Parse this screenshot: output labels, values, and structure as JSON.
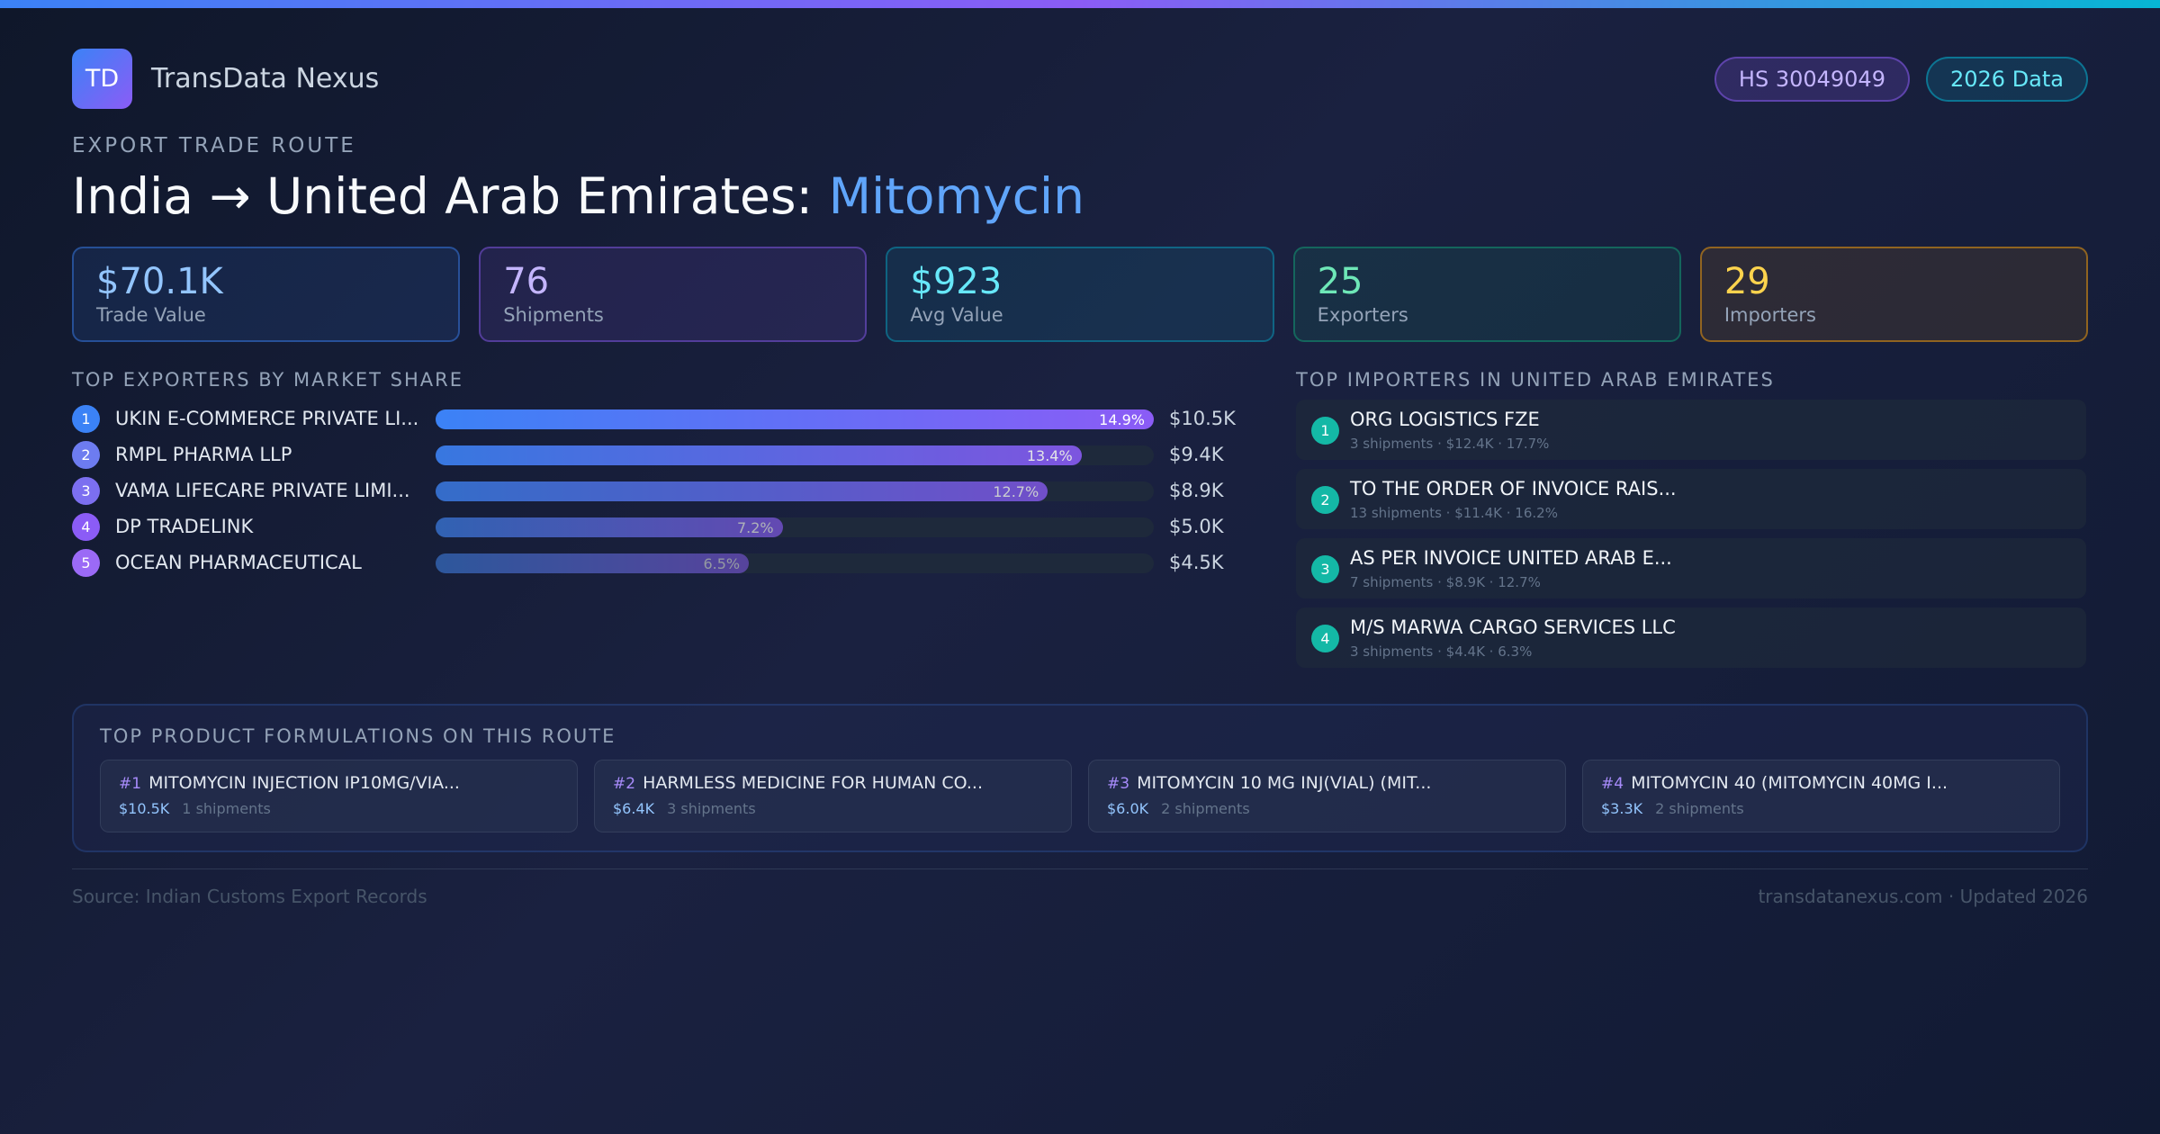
{
  "header": {
    "logo": "TD",
    "brand": "TransData Nexus",
    "badges": [
      "HS 30049049",
      "2026 Data"
    ]
  },
  "eyebrow": "EXPORT TRADE ROUTE",
  "title": {
    "route": "India → United Arab Emirates:",
    "product": "Mitomycin"
  },
  "stats": [
    {
      "value": "$70.1K",
      "label": "Trade Value"
    },
    {
      "value": "76",
      "label": "Shipments"
    },
    {
      "value": "$923",
      "label": "Avg Value"
    },
    {
      "value": "25",
      "label": "Exporters"
    },
    {
      "value": "29",
      "label": "Importers"
    }
  ],
  "exporters": {
    "title": "TOP EXPORTERS BY MARKET SHARE",
    "rows": [
      {
        "rank": 1,
        "name": "UKIN E-COMMERCE PRIVATE LI...",
        "share": 14.9,
        "share_label": "14.9%",
        "value": "$10.5K"
      },
      {
        "rank": 2,
        "name": "RMPL PHARMA LLP",
        "share": 13.4,
        "share_label": "13.4%",
        "value": "$9.4K"
      },
      {
        "rank": 3,
        "name": "VAMA LIFECARE PRIVATE LIMI...",
        "share": 12.7,
        "share_label": "12.7%",
        "value": "$8.9K"
      },
      {
        "rank": 4,
        "name": "DP TRADELINK",
        "share": 7.2,
        "share_label": "7.2%",
        "value": "$5.0K"
      },
      {
        "rank": 5,
        "name": "OCEAN PHARMACEUTICAL",
        "share": 6.5,
        "share_label": "6.5%",
        "value": "$4.5K"
      }
    ]
  },
  "importers": {
    "title": "TOP IMPORTERS IN UNITED ARAB EMIRATES",
    "rows": [
      {
        "rank": 1,
        "name": "ORG LOGISTICS FZE",
        "details": "3 shipments · $12.4K · 17.7%"
      },
      {
        "rank": 2,
        "name": "TO THE ORDER OF INVOICE RAIS...",
        "details": "13 shipments · $11.4K · 16.2%"
      },
      {
        "rank": 3,
        "name": "AS PER INVOICE UNITED ARAB E...",
        "details": "7 shipments · $8.9K · 12.7%"
      },
      {
        "rank": 4,
        "name": "M/S MARWA CARGO SERVICES LLC",
        "details": "3 shipments · $4.4K · 6.3%"
      }
    ]
  },
  "formulations": {
    "title": "TOP PRODUCT FORMULATIONS ON THIS ROUTE",
    "items": [
      {
        "rank": "#1",
        "name": "MITOMYCIN INJECTION IP10MG/VIA...",
        "value": "$10.5K",
        "shipments": "1 shipments"
      },
      {
        "rank": "#2",
        "name": "HARMLESS MEDICINE FOR HUMAN CO...",
        "value": "$6.4K",
        "shipments": "3 shipments"
      },
      {
        "rank": "#3",
        "name": "MITOMYCIN 10 MG INJ(VIAL) (MIT...",
        "value": "$6.0K",
        "shipments": "2 shipments"
      },
      {
        "rank": "#4",
        "name": "MITOMYCIN 40 (MITOMYCIN 40MG I...",
        "value": "$3.3K",
        "shipments": "2 shipments"
      }
    ]
  },
  "footer": {
    "source": "Source: Indian Customs Export Records",
    "site": "transdatanexus.com · Updated 2026"
  }
}
